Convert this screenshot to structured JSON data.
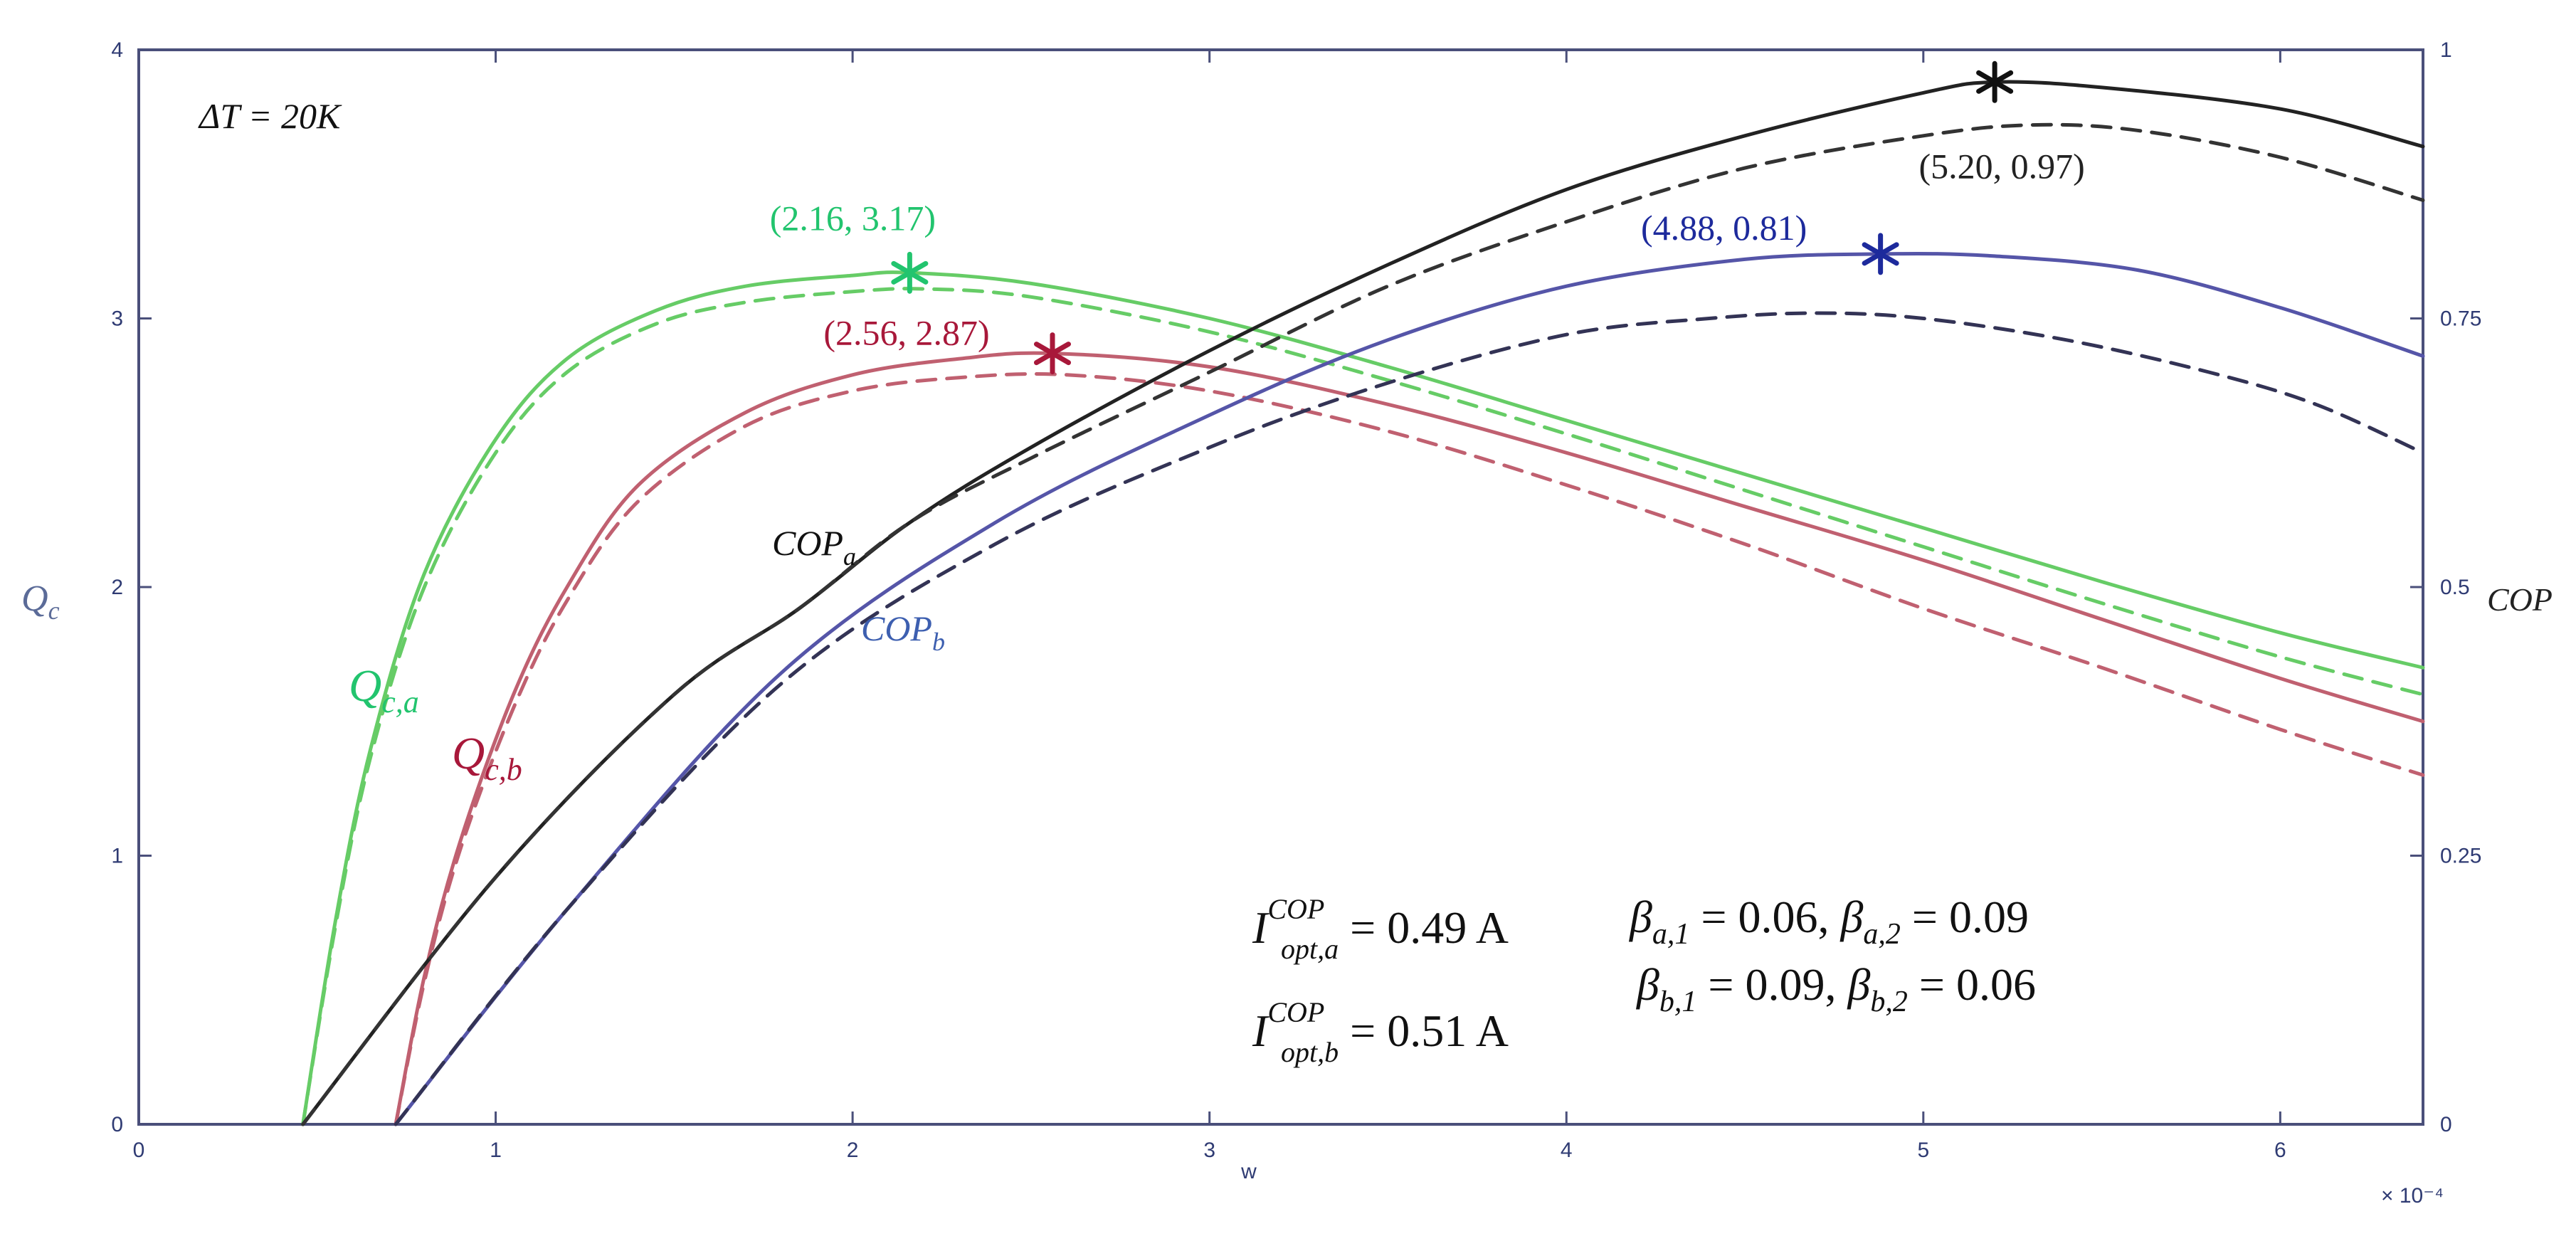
{
  "chart_data": {
    "type": "line",
    "title": "",
    "delta_t_label": "ΔT = 20K",
    "xlabel": "w",
    "x_multiplier_label": "× 10⁻⁴",
    "ylabel_left": "Q",
    "ylabel_left_sub": "c",
    "ylabel_right": "COP",
    "xlim": [
      0,
      6.4
    ],
    "ylim_left": [
      0,
      4
    ],
    "ylim_right": [
      0,
      1
    ],
    "x_ticks": [
      "0",
      "1",
      "2",
      "3",
      "4",
      "5",
      "6"
    ],
    "y_left_ticks": [
      "0",
      "1",
      "2",
      "3",
      "4"
    ],
    "y_right_ticks": [
      "0",
      "0.25",
      "0.5",
      "0.75",
      "1"
    ],
    "series": [
      {
        "name": "Q_c,a",
        "axis": "left",
        "color": "#66cc66",
        "style": "solid",
        "x": [
          0.46,
          0.55,
          0.65,
          0.8,
          1.0,
          1.2,
          1.45,
          1.7,
          2.0,
          2.16,
          2.5,
          3.0,
          3.5,
          4.0,
          4.5,
          5.0,
          5.5,
          6.0,
          6.4
        ],
        "y": [
          0.0,
          0.75,
          1.4,
          2.05,
          2.55,
          2.85,
          3.03,
          3.12,
          3.16,
          3.17,
          3.13,
          3.0,
          2.82,
          2.62,
          2.42,
          2.22,
          2.02,
          1.83,
          1.7
        ]
      },
      {
        "name": "Q_c,a (dashed)",
        "axis": "left",
        "color": "#66cc66",
        "style": "dashed",
        "x": [
          0.46,
          0.55,
          0.65,
          0.8,
          1.0,
          1.2,
          1.45,
          1.7,
          2.0,
          2.2,
          2.5,
          3.0,
          3.5,
          4.0,
          4.5,
          5.0,
          5.5,
          6.0,
          6.4
        ],
        "y": [
          0.0,
          0.73,
          1.37,
          2.0,
          2.5,
          2.8,
          2.98,
          3.06,
          3.1,
          3.11,
          3.08,
          2.95,
          2.77,
          2.57,
          2.36,
          2.15,
          1.94,
          1.74,
          1.6
        ]
      },
      {
        "name": "Q_c,b",
        "axis": "left",
        "color": "#c06070",
        "style": "solid",
        "x": [
          0.72,
          0.8,
          0.9,
          1.05,
          1.2,
          1.4,
          1.7,
          2.0,
          2.3,
          2.56,
          3.0,
          3.5,
          4.0,
          4.5,
          5.0,
          5.5,
          6.0,
          6.4
        ],
        "y": [
          0.0,
          0.55,
          1.05,
          1.6,
          2.0,
          2.38,
          2.65,
          2.79,
          2.85,
          2.87,
          2.82,
          2.68,
          2.5,
          2.3,
          2.1,
          1.88,
          1.66,
          1.5
        ]
      },
      {
        "name": "Q_c,b (dashed)",
        "axis": "left",
        "color": "#c06070",
        "style": "dashed",
        "x": [
          0.72,
          0.8,
          0.9,
          1.05,
          1.2,
          1.4,
          1.7,
          2.0,
          2.3,
          2.6,
          3.0,
          3.5,
          4.0,
          4.5,
          5.0,
          5.5,
          6.0,
          6.4
        ],
        "y": [
          0.0,
          0.53,
          1.02,
          1.55,
          1.95,
          2.32,
          2.6,
          2.73,
          2.78,
          2.79,
          2.73,
          2.58,
          2.38,
          2.16,
          1.92,
          1.7,
          1.47,
          1.3
        ]
      },
      {
        "name": "COP_a",
        "axis": "right",
        "color": "#222222",
        "style": "solid",
        "x": [
          0.46,
          1.0,
          1.5,
          1.85,
          2.16,
          2.5,
          3.0,
          3.5,
          4.0,
          4.5,
          5.0,
          5.2,
          5.5,
          6.0,
          6.4
        ],
        "y": [
          0.0,
          0.23,
          0.4,
          0.48,
          0.56,
          0.63,
          0.72,
          0.8,
          0.87,
          0.92,
          0.96,
          0.97,
          0.965,
          0.945,
          0.91
        ]
      },
      {
        "name": "COP_a (dashed)",
        "axis": "right",
        "color": "#333333",
        "style": "dashed",
        "x": [
          0.46,
          1.0,
          1.5,
          1.85,
          2.16,
          2.5,
          3.0,
          3.5,
          4.0,
          4.5,
          5.0,
          5.3,
          5.6,
          6.0,
          6.4
        ],
        "y": [
          0.0,
          0.23,
          0.4,
          0.48,
          0.56,
          0.62,
          0.7,
          0.78,
          0.84,
          0.89,
          0.92,
          0.93,
          0.925,
          0.9,
          0.86
        ]
      },
      {
        "name": "COP_b",
        "axis": "right",
        "color": "#5555a8",
        "style": "solid",
        "x": [
          0.72,
          1.2,
          1.8,
          2.4,
          3.0,
          3.5,
          4.0,
          4.5,
          4.88,
          5.2,
          5.6,
          6.0,
          6.4
        ],
        "y": [
          0.0,
          0.2,
          0.42,
          0.56,
          0.66,
          0.73,
          0.78,
          0.805,
          0.81,
          0.808,
          0.795,
          0.76,
          0.715
        ]
      },
      {
        "name": "COP_b (dashed)",
        "axis": "right",
        "color": "#333355",
        "style": "dashed",
        "x": [
          0.72,
          1.2,
          1.8,
          2.4,
          3.0,
          3.5,
          4.0,
          4.4,
          4.7,
          5.0,
          5.4,
          5.8,
          6.1,
          6.4
        ],
        "y": [
          0.0,
          0.2,
          0.41,
          0.54,
          0.63,
          0.69,
          0.735,
          0.75,
          0.755,
          0.75,
          0.73,
          0.7,
          0.67,
          0.625
        ]
      }
    ],
    "markers": [
      {
        "label": "(2.16, 3.17)",
        "axis": "left",
        "x": 2.16,
        "y": 3.17,
        "color": "#22c46e",
        "marker_color": "#22c46e"
      },
      {
        "label": "(2.56, 2.87)",
        "axis": "left",
        "x": 2.56,
        "y": 2.87,
        "color": "#a8183a",
        "marker_color": "#a8183a"
      },
      {
        "label": "(5.20, 0.97)",
        "axis": "right",
        "x": 5.2,
        "y": 0.97,
        "color": "#222222",
        "marker_color": "#111111"
      },
      {
        "label": "(4.88, 0.81)",
        "axis": "right",
        "x": 4.88,
        "y": 0.81,
        "color": "#1d2a9c",
        "marker_color": "#1d2a9c"
      }
    ],
    "curve_labels": {
      "qca": {
        "main": "Q",
        "sub": "c,a",
        "color": "#22c46e"
      },
      "qcb": {
        "main": "Q",
        "sub": "c,b",
        "color": "#a8183a"
      },
      "copa": {
        "main": "COP",
        "sub": "a",
        "color": "#111111"
      },
      "copb": {
        "main": "COP",
        "sub": "b",
        "color": "#3d5fb0"
      }
    },
    "formulas": {
      "i_a": {
        "main": "I",
        "sup": "COP",
        "sub": "opt,a",
        "rest": " = 0.49 A"
      },
      "i_b": {
        "main": "I",
        "sup": "COP",
        "sub": "opt,b",
        "rest": " = 0.51 A"
      },
      "beta_a": "β",
      "beta_a_text": {
        "s1": "a,1",
        "v1": " = 0.06, ",
        "s2": "a,2",
        "v2": " = 0.09"
      },
      "beta_b_text": {
        "s1": "b,1",
        "v1": " = 0.09, ",
        "s2": "b,2",
        "v2": " = 0.06"
      }
    }
  }
}
